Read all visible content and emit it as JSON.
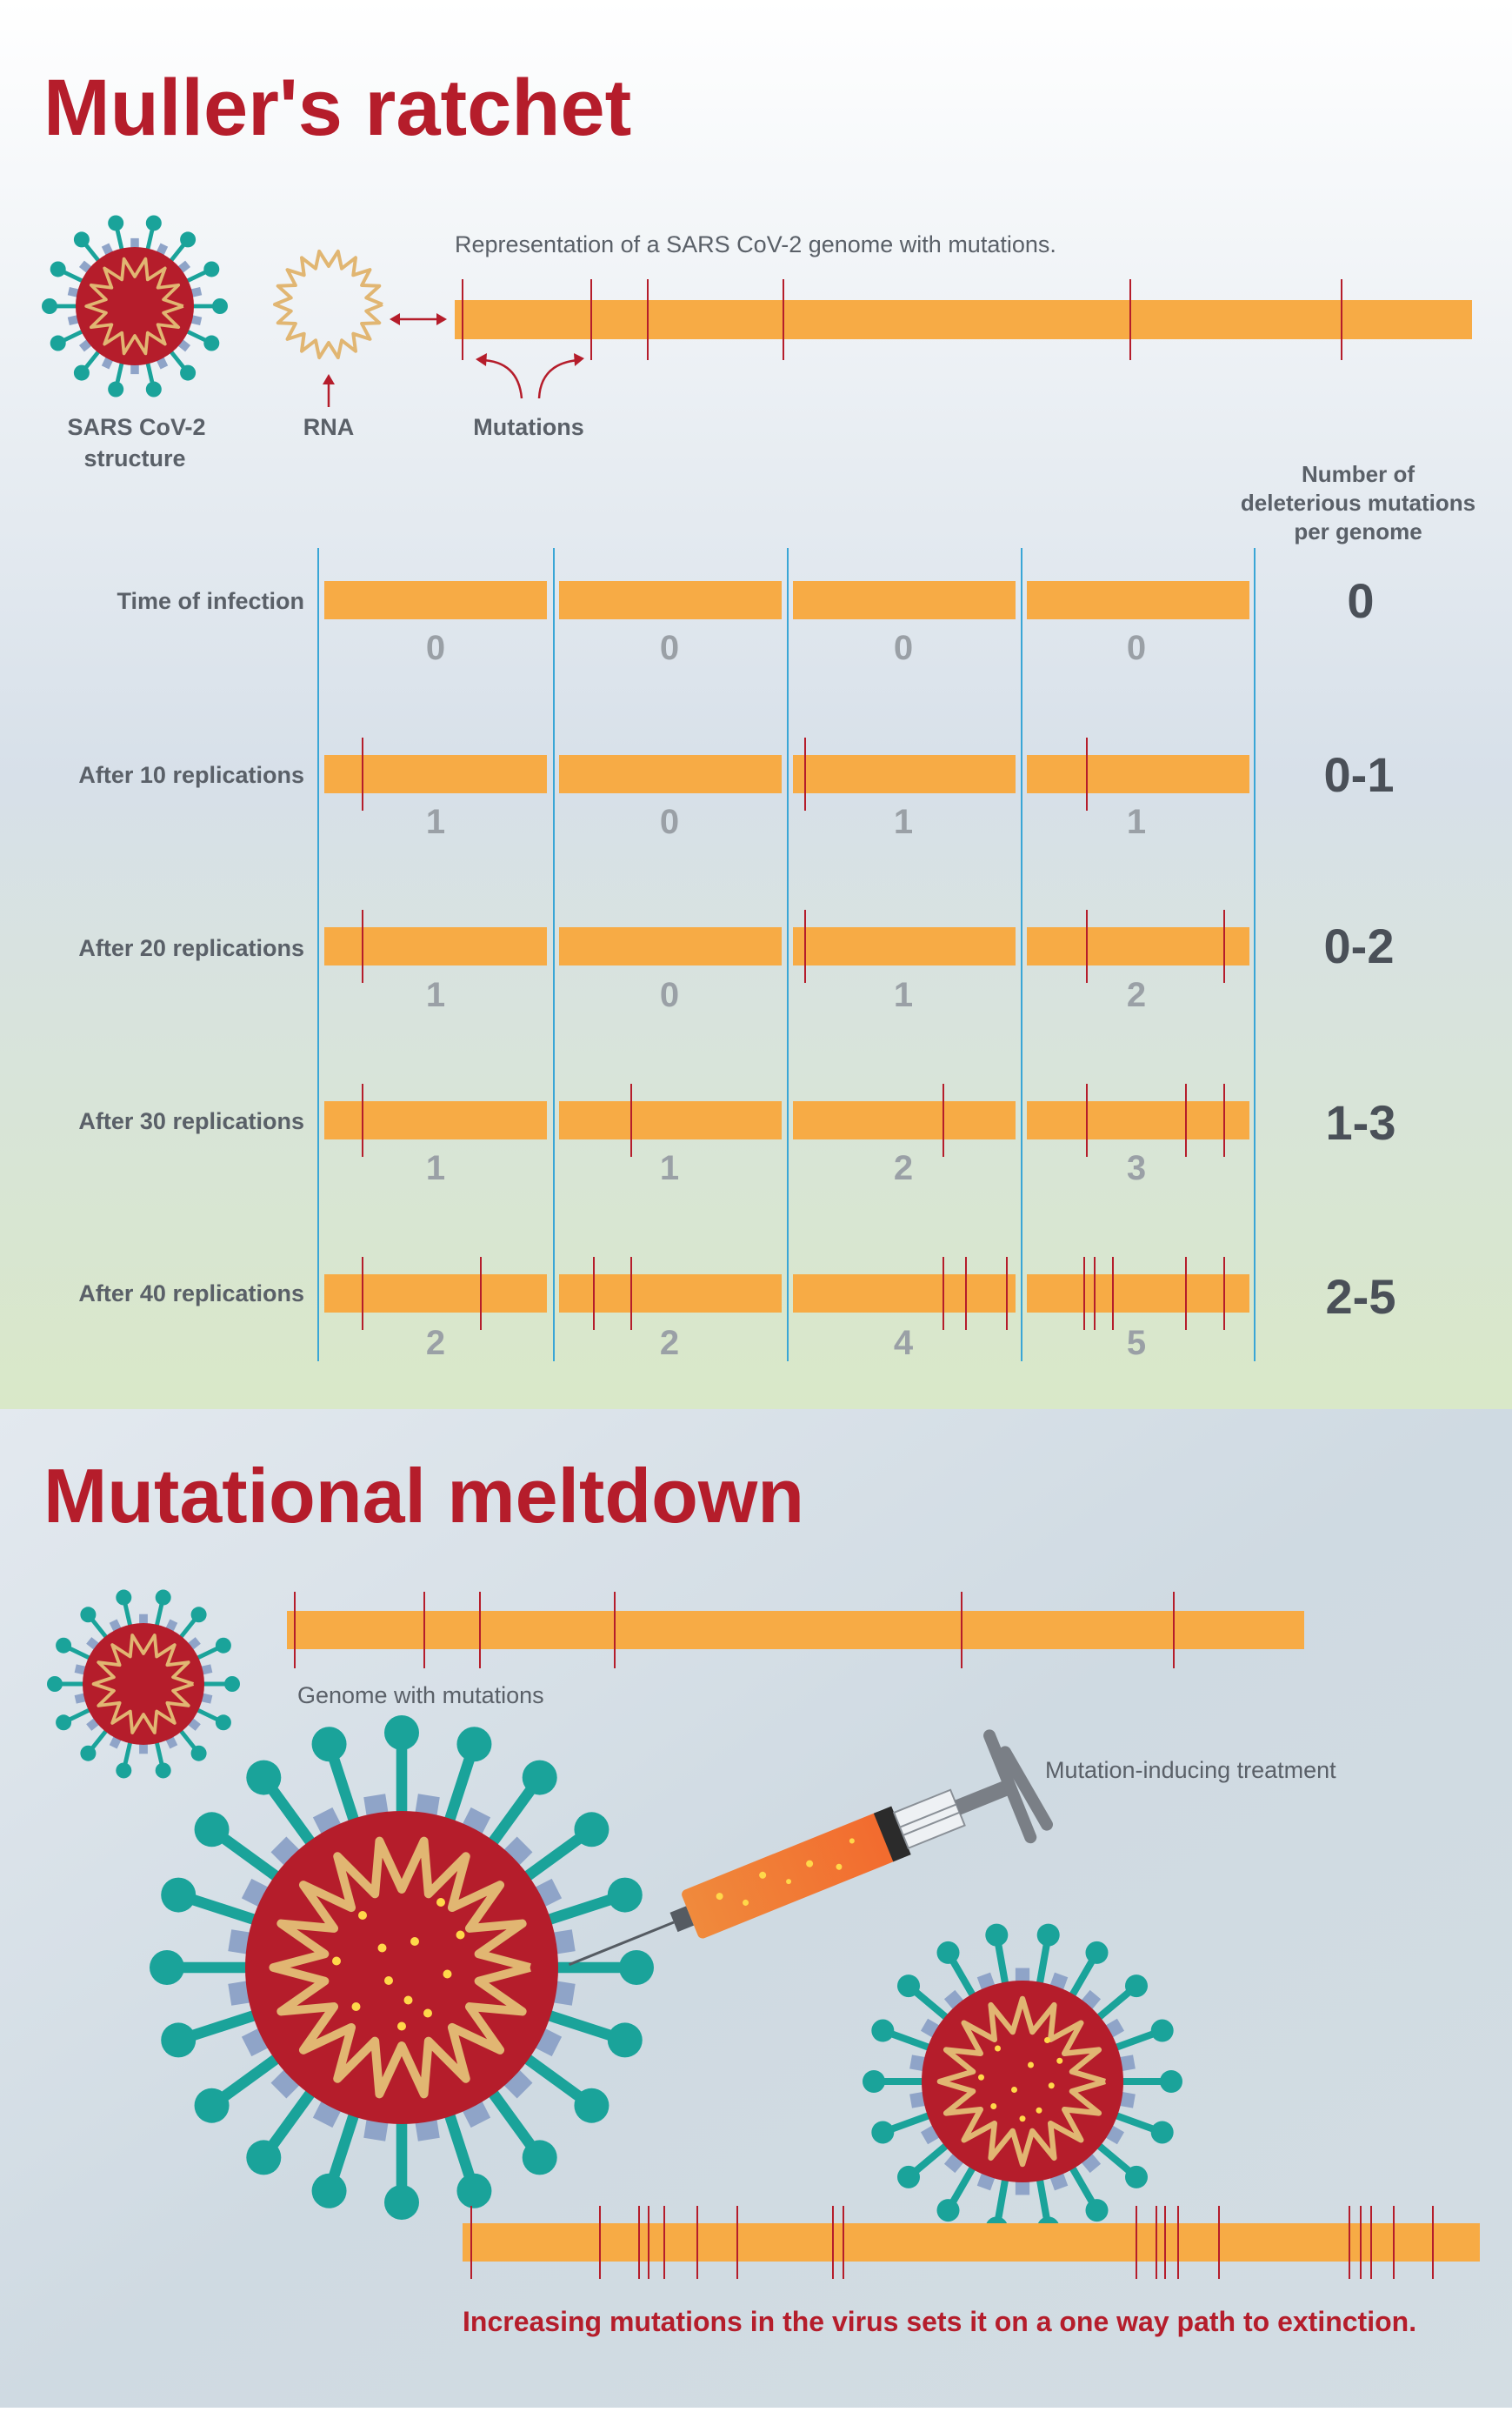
{
  "colors": {
    "accent": "#b51d2b",
    "genome_bar": "#f7ab45",
    "mutation_mark": "#b51d2b",
    "virus_body": "#b51d2b",
    "virus_spike": "#1aa39a",
    "virus_spike_base": "#8fa4c8",
    "rna": "#e1b672",
    "divider": "#3aa6d6",
    "text": "#5a6068",
    "count_text": "#9aa0a6"
  },
  "section1": {
    "title": "Muller's ratchet",
    "genome_caption": "Representation of a SARS CoV-2 genome with mutations.",
    "virus_label_line1": "SARS CoV-2",
    "virus_label_line2": "structure",
    "rna_label": "RNA",
    "mutations_label": "Mutations",
    "column_header": [
      "Number of",
      "deleterious mutations",
      "per genome"
    ],
    "rows": [
      {
        "label": "Time of infection",
        "counts": [
          "0",
          "0",
          "0",
          "0"
        ],
        "range": "0"
      },
      {
        "label": "After 10 replications",
        "counts": [
          "1",
          "0",
          "1",
          "1"
        ],
        "range": "0-1"
      },
      {
        "label": "After 20 replications",
        "counts": [
          "1",
          "0",
          "1",
          "2"
        ],
        "range": "0-2"
      },
      {
        "label": "After 30 replications",
        "counts": [
          "1",
          "1",
          "2",
          "3"
        ],
        "range": "1-3"
      },
      {
        "label": "After 40 replications",
        "counts": [
          "2",
          "2",
          "4",
          "5"
        ],
        "range": "2-5"
      }
    ]
  },
  "section2": {
    "title": "Mutational meltdown",
    "genome_caption": "Genome with mutations",
    "treatment_label": "Mutation-inducing treatment",
    "conclusion": "Increasing mutations in the virus sets it on a one way path to extinction."
  }
}
